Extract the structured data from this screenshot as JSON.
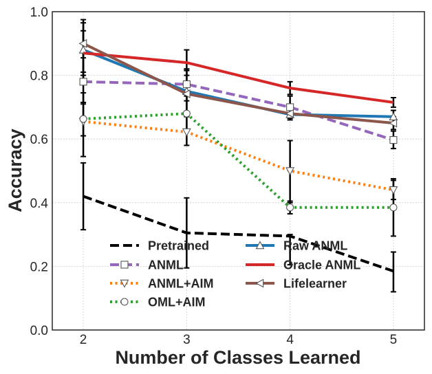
{
  "chart_data": {
    "type": "line",
    "xlabel": "Number of Classes Learned",
    "ylabel": "Accuracy",
    "x": [
      2,
      3,
      4,
      5
    ],
    "xlim": [
      1.7,
      5.3
    ],
    "ylim": [
      0.0,
      1.0
    ],
    "xticks": [
      "2",
      "3",
      "4",
      "5"
    ],
    "yticks": [
      "0.0",
      "0.2",
      "0.4",
      "0.6",
      "0.8",
      "1.0"
    ],
    "grid": true,
    "legend_position": "lower-center",
    "series": [
      {
        "name": "Pretrained",
        "color": "#000000",
        "dash": "dashed",
        "marker": "none",
        "values": [
          0.42,
          0.305,
          0.295,
          0.185
        ],
        "errors": [
          [
            0.315,
            0.525
          ],
          [
            0.195,
            0.415
          ],
          [
            0.205,
            0.3
          ],
          [
            0.12,
            0.245
          ]
        ]
      },
      {
        "name": "ANML",
        "color": "#9467bd",
        "dash": "dashed",
        "marker": "square",
        "values": [
          0.78,
          0.772,
          0.7,
          0.597
        ],
        "errors": [
          [
            0.71,
            0.855
          ],
          [
            0.72,
            0.82
          ],
          [
            0.665,
            0.735
          ],
          [
            0.57,
            0.625
          ]
        ]
      },
      {
        "name": "ANML+AIM",
        "color": "#ff7f0e",
        "dash": "dotted",
        "marker": "triangle-down",
        "values": [
          0.655,
          0.622,
          0.5,
          0.44
        ],
        "errors": [
          [
            0.545,
            0.745
          ],
          [
            0.58,
            0.68
          ],
          [
            0.4,
            0.595
          ],
          [
            0.41,
            0.47
          ]
        ]
      },
      {
        "name": "OML+AIM",
        "color": "#2ca02c",
        "dash": "dotted",
        "marker": "circle",
        "values": [
          0.663,
          0.68,
          0.385,
          0.385
        ],
        "errors": [
          [
            0.61,
            0.715
          ],
          [
            0.63,
            0.735
          ],
          [
            0.365,
            0.405
          ],
          [
            0.295,
            0.475
          ]
        ]
      },
      {
        "name": "Raw ANML",
        "color": "#1f77b4",
        "dash": "solid",
        "marker": "triangle-up",
        "values": [
          0.88,
          0.75,
          0.677,
          0.67
        ],
        "errors": [
          [
            0.78,
            0.965
          ],
          [
            0.685,
            0.82
          ],
          [
            0.66,
            0.695
          ],
          [
            0.65,
            0.69
          ]
        ]
      },
      {
        "name": "Oracle ANML",
        "color": "#d62728",
        "dash": "solid",
        "marker": "none",
        "values": [
          0.87,
          0.84,
          0.76,
          0.715
        ],
        "errors": [
          [
            0.8,
            0.94
          ],
          [
            0.8,
            0.88
          ],
          [
            0.74,
            0.78
          ],
          [
            0.7,
            0.73
          ]
        ]
      },
      {
        "name": "Lifelearner",
        "color": "#8c564b",
        "dash": "solid",
        "marker": "triangle-left",
        "values": [
          0.9,
          0.742,
          0.68,
          0.65
        ],
        "errors": [
          [
            0.81,
            0.975
          ],
          [
            0.67,
            0.815
          ],
          [
            0.67,
            0.69
          ],
          [
            0.63,
            0.67
          ]
        ]
      }
    ]
  }
}
